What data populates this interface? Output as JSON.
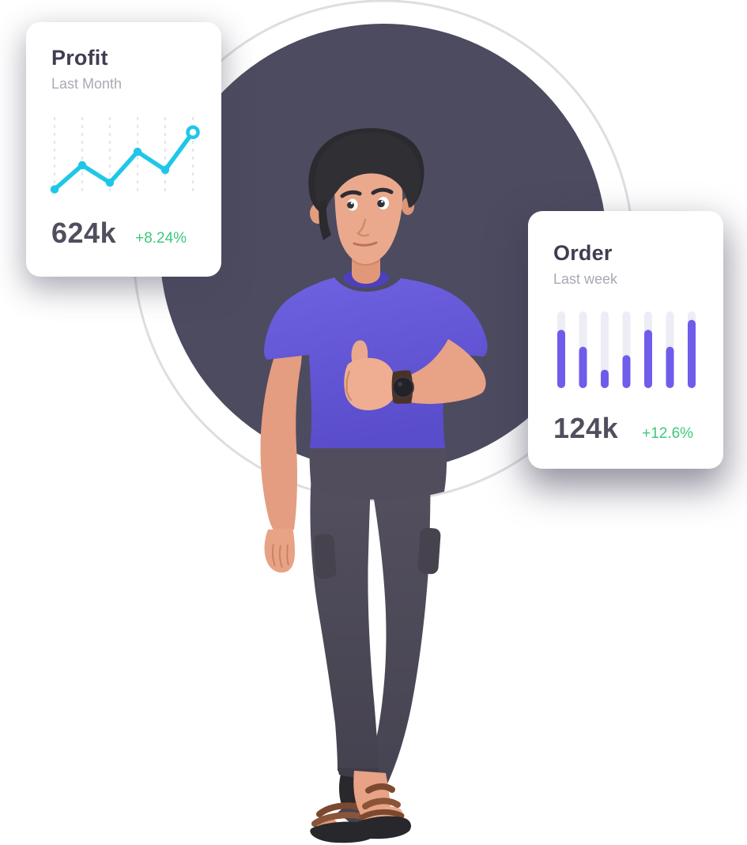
{
  "illustration": {
    "description": "3D man with dark hair in a purple t-shirt and dark cargo pants giving a thumbs up, wearing a wristwatch and brown sandals",
    "background_circle_color": "#4c4b60",
    "outline_ring_color": "#dfdde0"
  },
  "profit_card": {
    "title": "Profit",
    "subtitle": "Last Month",
    "value": "624k",
    "change": "+8.24%"
  },
  "order_card": {
    "title": "Order",
    "subtitle": "Last week",
    "value": "124k",
    "change": "+12.6%"
  },
  "colors": {
    "accent_cyan": "#1ec7e8",
    "accent_purple": "#6f5cea",
    "positive_green": "#3dc97c",
    "bar_track": "#ecedf5",
    "gridline": "#dcdbe3",
    "card_background": "#ffffff",
    "title_text": "#403d52",
    "subtitle_text": "#aaa8b3",
    "value_text": "#514e5e"
  },
  "chart_data": [
    {
      "type": "line",
      "card": "profit",
      "title": "Profit — Last Month",
      "x": [
        1,
        2,
        3,
        4,
        5,
        6
      ],
      "values": [
        4,
        40,
        14,
        60,
        33,
        89
      ],
      "ylim": [
        0,
        100
      ],
      "grid": "vertical-dashed",
      "legend": "none",
      "line_color": "#1ec7e8",
      "grid_color": "#dcdbe3",
      "last_point_style": "open-ring"
    },
    {
      "type": "bar",
      "card": "order",
      "title": "Order — Last week",
      "categories": [
        "1",
        "2",
        "3",
        "4",
        "5",
        "6",
        "7"
      ],
      "values": [
        76,
        54,
        24,
        43,
        76,
        54,
        89
      ],
      "ylim": [
        0,
        100
      ],
      "grid": "off",
      "legend": "none",
      "bar_color": "#6f5cea",
      "track_color": "#ecedf5"
    }
  ]
}
